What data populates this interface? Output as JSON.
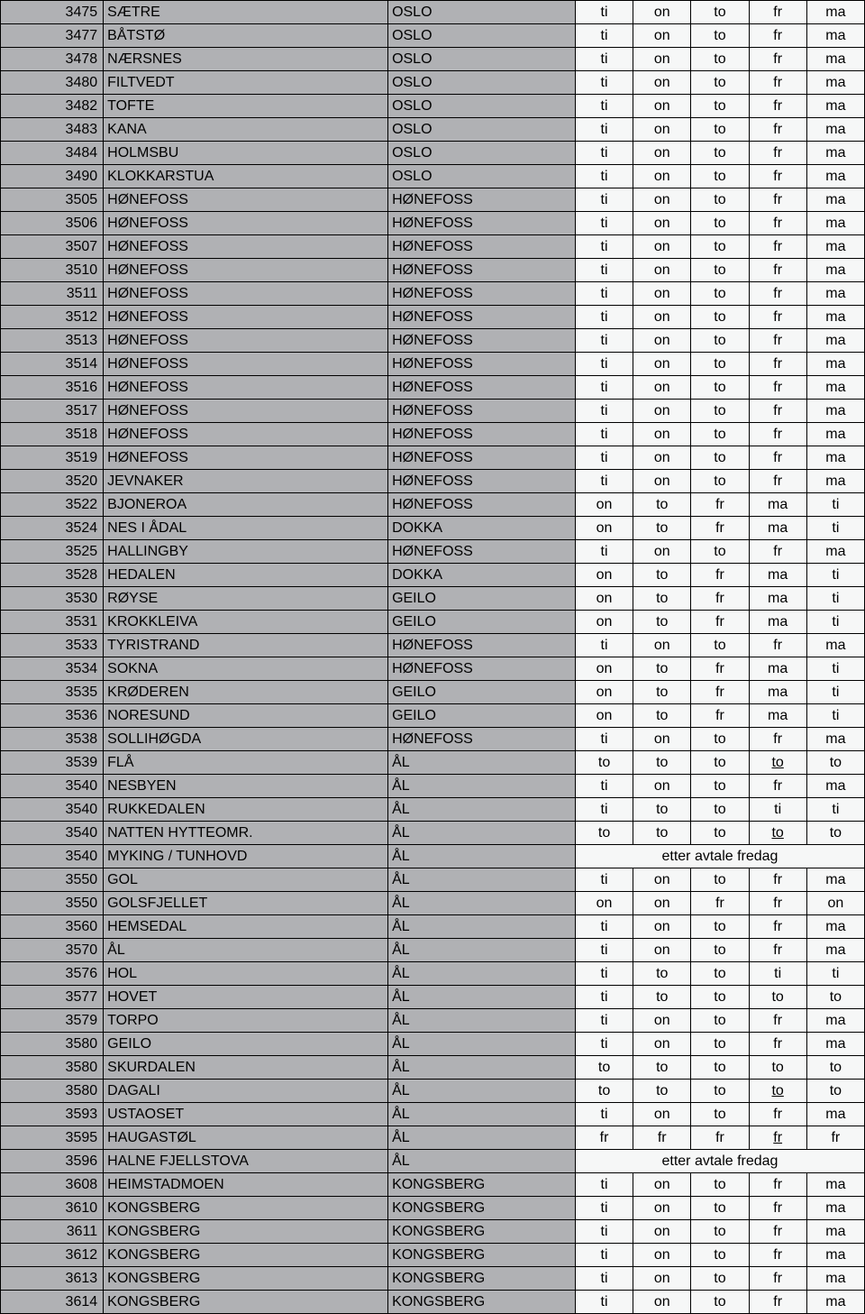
{
  "colors": {
    "greyCell": "#b0b1b4",
    "lightCell": "#f6f7f7",
    "border": "#000000",
    "text": "#000000"
  },
  "fontsize": 16,
  "rows": [
    {
      "code": "3475",
      "place": "SÆTRE",
      "region": "OSLO",
      "days": [
        "ti",
        "on",
        "to",
        "fr",
        "ma"
      ]
    },
    {
      "code": "3477",
      "place": "BÅTSTØ",
      "region": "OSLO",
      "days": [
        "ti",
        "on",
        "to",
        "fr",
        "ma"
      ]
    },
    {
      "code": "3478",
      "place": "NÆRSNES",
      "region": "OSLO",
      "days": [
        "ti",
        "on",
        "to",
        "fr",
        "ma"
      ]
    },
    {
      "code": "3480",
      "place": "FILTVEDT",
      "region": "OSLO",
      "days": [
        "ti",
        "on",
        "to",
        "fr",
        "ma"
      ]
    },
    {
      "code": "3482",
      "place": "TOFTE",
      "region": "OSLO",
      "days": [
        "ti",
        "on",
        "to",
        "fr",
        "ma"
      ]
    },
    {
      "code": "3483",
      "place": "KANA",
      "region": "OSLO",
      "days": [
        "ti",
        "on",
        "to",
        "fr",
        "ma"
      ]
    },
    {
      "code": "3484",
      "place": "HOLMSBU",
      "region": "OSLO",
      "days": [
        "ti",
        "on",
        "to",
        "fr",
        "ma"
      ]
    },
    {
      "code": "3490",
      "place": "KLOKKARSTUA",
      "region": "OSLO",
      "days": [
        "ti",
        "on",
        "to",
        "fr",
        "ma"
      ]
    },
    {
      "code": "3505",
      "place": "HØNEFOSS",
      "region": "HØNEFOSS",
      "days": [
        "ti",
        "on",
        "to",
        "fr",
        "ma"
      ]
    },
    {
      "code": "3506",
      "place": "HØNEFOSS",
      "region": "HØNEFOSS",
      "days": [
        "ti",
        "on",
        "to",
        "fr",
        "ma"
      ]
    },
    {
      "code": "3507",
      "place": "HØNEFOSS",
      "region": "HØNEFOSS",
      "days": [
        "ti",
        "on",
        "to",
        "fr",
        "ma"
      ]
    },
    {
      "code": "3510",
      "place": "HØNEFOSS",
      "region": "HØNEFOSS",
      "days": [
        "ti",
        "on",
        "to",
        "fr",
        "ma"
      ]
    },
    {
      "code": "3511",
      "place": "HØNEFOSS",
      "region": "HØNEFOSS",
      "days": [
        "ti",
        "on",
        "to",
        "fr",
        "ma"
      ]
    },
    {
      "code": "3512",
      "place": "HØNEFOSS",
      "region": "HØNEFOSS",
      "days": [
        "ti",
        "on",
        "to",
        "fr",
        "ma"
      ]
    },
    {
      "code": "3513",
      "place": "HØNEFOSS",
      "region": "HØNEFOSS",
      "days": [
        "ti",
        "on",
        "to",
        "fr",
        "ma"
      ]
    },
    {
      "code": "3514",
      "place": "HØNEFOSS",
      "region": "HØNEFOSS",
      "days": [
        "ti",
        "on",
        "to",
        "fr",
        "ma"
      ]
    },
    {
      "code": "3516",
      "place": "HØNEFOSS",
      "region": "HØNEFOSS",
      "days": [
        "ti",
        "on",
        "to",
        "fr",
        "ma"
      ]
    },
    {
      "code": "3517",
      "place": "HØNEFOSS",
      "region": "HØNEFOSS",
      "days": [
        "ti",
        "on",
        "to",
        "fr",
        "ma"
      ]
    },
    {
      "code": "3518",
      "place": "HØNEFOSS",
      "region": "HØNEFOSS",
      "days": [
        "ti",
        "on",
        "to",
        "fr",
        "ma"
      ]
    },
    {
      "code": "3519",
      "place": "HØNEFOSS",
      "region": "HØNEFOSS",
      "days": [
        "ti",
        "on",
        "to",
        "fr",
        "ma"
      ]
    },
    {
      "code": "3520",
      "place": "JEVNAKER",
      "region": "HØNEFOSS",
      "days": [
        "ti",
        "on",
        "to",
        "fr",
        "ma"
      ]
    },
    {
      "code": "3522",
      "place": "BJONEROA",
      "region": "HØNEFOSS",
      "days": [
        "on",
        "to",
        "fr",
        "ma",
        "ti"
      ]
    },
    {
      "code": "3524",
      "place": "NES I ÅDAL",
      "region": "DOKKA",
      "days": [
        "on",
        "to",
        "fr",
        "ma",
        "ti"
      ]
    },
    {
      "code": "3525",
      "place": "HALLINGBY",
      "region": "HØNEFOSS",
      "days": [
        "ti",
        "on",
        "to",
        "fr",
        "ma"
      ]
    },
    {
      "code": "3528",
      "place": "HEDALEN",
      "region": "DOKKA",
      "days": [
        "on",
        "to",
        "fr",
        "ma",
        "ti"
      ]
    },
    {
      "code": "3530",
      "place": "RØYSE",
      "region": "GEILO",
      "days": [
        "on",
        "to",
        "fr",
        "ma",
        "ti"
      ]
    },
    {
      "code": "3531",
      "place": "KROKKLEIVA",
      "region": "GEILO",
      "days": [
        "on",
        "to",
        "fr",
        "ma",
        "ti"
      ]
    },
    {
      "code": "3533",
      "place": "TYRISTRAND",
      "region": "HØNEFOSS",
      "days": [
        "ti",
        "on",
        "to",
        "fr",
        "ma"
      ]
    },
    {
      "code": "3534",
      "place": "SOKNA",
      "region": "HØNEFOSS",
      "days": [
        "on",
        "to",
        "fr",
        "ma",
        "ti"
      ]
    },
    {
      "code": "3535",
      "place": "KRØDEREN",
      "region": "GEILO",
      "days": [
        "on",
        "to",
        "fr",
        "ma",
        "ti"
      ]
    },
    {
      "code": "3536",
      "place": "NORESUND",
      "region": "GEILO",
      "days": [
        "on",
        "to",
        "fr",
        "ma",
        "ti"
      ]
    },
    {
      "code": "3538",
      "place": "SOLLIHØGDA",
      "region": "HØNEFOSS",
      "days": [
        "ti",
        "on",
        "to",
        "fr",
        "ma"
      ]
    },
    {
      "code": "3539",
      "place": "FLÅ",
      "region": "ÅL",
      "days": [
        "to",
        "to",
        "to",
        "to",
        "to"
      ],
      "underline": [
        3
      ]
    },
    {
      "code": "3540",
      "place": "NESBYEN",
      "region": "ÅL",
      "days": [
        "ti",
        "on",
        "to",
        "fr",
        "ma"
      ]
    },
    {
      "code": "3540",
      "place": "RUKKEDALEN",
      "region": "ÅL",
      "days": [
        "ti",
        "to",
        "to",
        "ti",
        "ti"
      ]
    },
    {
      "code": "3540",
      "place": "NATTEN HYTTEOMR.",
      "region": "ÅL",
      "days": [
        "to",
        "to",
        "to",
        "to",
        "to"
      ],
      "underline": [
        3
      ]
    },
    {
      "code": "3540",
      "place": "MYKING / TUNHOVD",
      "region": "ÅL",
      "merged": "etter avtale fredag"
    },
    {
      "code": "3550",
      "place": "GOL",
      "region": "ÅL",
      "days": [
        "ti",
        "on",
        "to",
        "fr",
        "ma"
      ]
    },
    {
      "code": "3550",
      "place": "GOLSFJELLET",
      "region": "ÅL",
      "days": [
        "on",
        "on",
        "fr",
        "fr",
        "on"
      ]
    },
    {
      "code": "3560",
      "place": "HEMSEDAL",
      "region": "ÅL",
      "days": [
        "ti",
        "on",
        "to",
        "fr",
        "ma"
      ]
    },
    {
      "code": "3570",
      "place": "ÅL",
      "region": "ÅL",
      "days": [
        "ti",
        "on",
        "to",
        "fr",
        "ma"
      ]
    },
    {
      "code": "3576",
      "place": "HOL",
      "region": "ÅL",
      "days": [
        "ti",
        "to",
        "to",
        "ti",
        "ti"
      ]
    },
    {
      "code": "3577",
      "place": "HOVET",
      "region": "ÅL",
      "days": [
        "ti",
        "to",
        "to",
        "to",
        "to"
      ]
    },
    {
      "code": "3579",
      "place": "TORPO",
      "region": "ÅL",
      "days": [
        "ti",
        "on",
        "to",
        "fr",
        "ma"
      ]
    },
    {
      "code": "3580",
      "place": "GEILO",
      "region": "ÅL",
      "days": [
        "ti",
        "on",
        "to",
        "fr",
        "ma"
      ]
    },
    {
      "code": "3580",
      "place": "SKURDALEN",
      "region": "ÅL",
      "days": [
        "to",
        "to",
        "to",
        "to",
        "to"
      ]
    },
    {
      "code": "3580",
      "place": "DAGALI",
      "region": "ÅL",
      "days": [
        "to",
        "to",
        "to",
        "to",
        "to"
      ],
      "underline": [
        3
      ]
    },
    {
      "code": "3593",
      "place": "USTAOSET",
      "region": "ÅL",
      "days": [
        "ti",
        "on",
        "to",
        "fr",
        "ma"
      ]
    },
    {
      "code": "3595",
      "place": "HAUGASTØL",
      "region": "ÅL",
      "days": [
        "fr",
        "fr",
        "fr",
        "fr",
        "fr"
      ],
      "underline": [
        3
      ]
    },
    {
      "code": "3596",
      "place": "HALNE FJELLSTOVA",
      "region": "ÅL",
      "merged": "etter avtale fredag"
    },
    {
      "code": "3608",
      "place": "HEIMSTADMOEN",
      "region": "KONGSBERG",
      "days": [
        "ti",
        "on",
        "to",
        "fr",
        "ma"
      ]
    },
    {
      "code": "3610",
      "place": "KONGSBERG",
      "region": "KONGSBERG",
      "days": [
        "ti",
        "on",
        "to",
        "fr",
        "ma"
      ]
    },
    {
      "code": "3611",
      "place": "KONGSBERG",
      "region": "KONGSBERG",
      "days": [
        "ti",
        "on",
        "to",
        "fr",
        "ma"
      ]
    },
    {
      "code": "3612",
      "place": "KONGSBERG",
      "region": "KONGSBERG",
      "days": [
        "ti",
        "on",
        "to",
        "fr",
        "ma"
      ]
    },
    {
      "code": "3613",
      "place": "KONGSBERG",
      "region": "KONGSBERG",
      "days": [
        "ti",
        "on",
        "to",
        "fr",
        "ma"
      ]
    },
    {
      "code": "3614",
      "place": "KONGSBERG",
      "region": "KONGSBERG",
      "days": [
        "ti",
        "on",
        "to",
        "fr",
        "ma"
      ]
    }
  ]
}
